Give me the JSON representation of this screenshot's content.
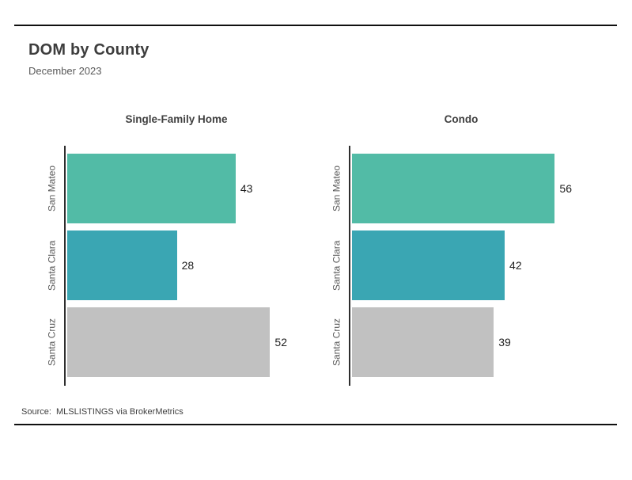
{
  "header": {
    "title": "DOM by County",
    "subtitle": "December 2023"
  },
  "chart_data": {
    "type": "bar",
    "orientation": "horizontal",
    "title": "DOM by County",
    "subtitle": "December 2023",
    "categories": [
      "San Mateo",
      "Santa Clara",
      "Santa Cruz"
    ],
    "panels": [
      {
        "title": "Single-Family Home",
        "values": [
          43,
          28,
          52
        ]
      },
      {
        "title": "Condo",
        "values": [
          56,
          42,
          39
        ]
      }
    ],
    "bar_colors": [
      "#52bba6",
      "#3aa6b3",
      "#c1c1c1"
    ],
    "value_label_color": "#1f1f1f",
    "axis_color": "#2e2e2e",
    "grid": false,
    "legend_position": "none"
  },
  "footer": {
    "source": "Source:  MLSLISTINGS via BrokerMetrics"
  }
}
